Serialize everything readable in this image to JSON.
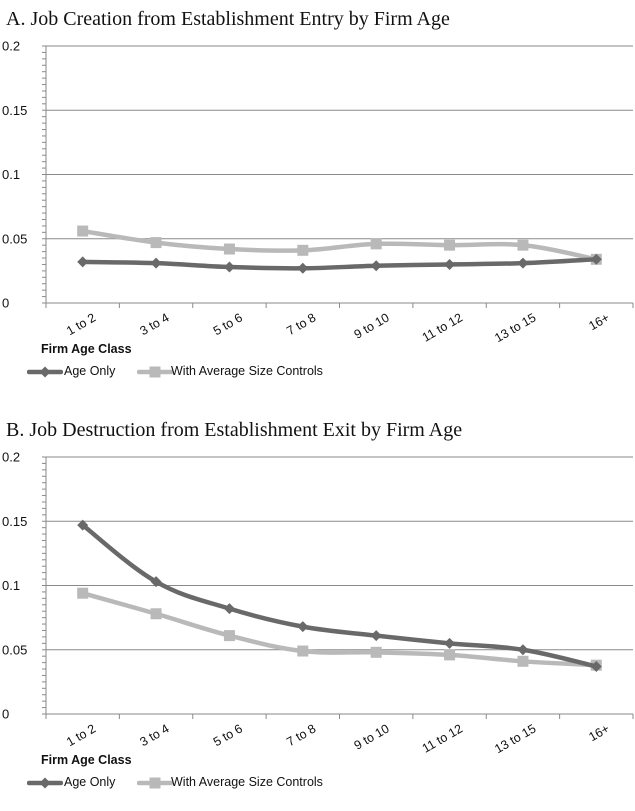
{
  "chart_data": [
    {
      "type": "line",
      "title": "A. Job Creation from Establishment Entry by Firm Age",
      "xlabel": "Firm Age Class",
      "ylabel": "",
      "categories": [
        "1 to 2",
        "3 to 4",
        "5 to 6",
        "7 to 8",
        "9 to 10",
        "11 to 12",
        "13 to 15",
        "16+"
      ],
      "ylim": [
        0,
        0.2
      ],
      "yticks": [
        "0",
        "0.05",
        "0.1",
        "0.15",
        "0.2"
      ],
      "legend_position": "bottom-left",
      "grid": "horizontal",
      "series": [
        {
          "name": "Age Only",
          "marker": "diamond",
          "color": "#696969",
          "values": [
            0.032,
            0.031,
            0.028,
            0.027,
            0.029,
            0.03,
            0.031,
            0.034
          ]
        },
        {
          "name": "With Average Size Controls",
          "marker": "square",
          "color": "#b9b9b9",
          "values": [
            0.056,
            0.047,
            0.042,
            0.041,
            0.046,
            0.045,
            0.045,
            0.034
          ]
        }
      ]
    },
    {
      "type": "line",
      "title": "B. Job Destruction from Establishment Exit by Firm Age",
      "xlabel": "Firm Age Class",
      "ylabel": "",
      "categories": [
        "1 to 2",
        "3 to 4",
        "5 to 6",
        "7 to 8",
        "9 to 10",
        "11 to 12",
        "13 to 15",
        "16+"
      ],
      "ylim": [
        0,
        0.2
      ],
      "yticks": [
        "0",
        "0.05",
        "0.1",
        "0.15",
        "0.2"
      ],
      "legend_position": "bottom-left",
      "grid": "horizontal",
      "series": [
        {
          "name": "Age Only",
          "marker": "diamond",
          "color": "#696969",
          "values": [
            0.147,
            0.103,
            0.082,
            0.068,
            0.061,
            0.055,
            0.05,
            0.037
          ]
        },
        {
          "name": "With Average Size Controls",
          "marker": "square",
          "color": "#b9b9b9",
          "values": [
            0.094,
            0.078,
            0.061,
            0.049,
            0.048,
            0.046,
            0.041,
            0.038
          ]
        }
      ]
    }
  ]
}
